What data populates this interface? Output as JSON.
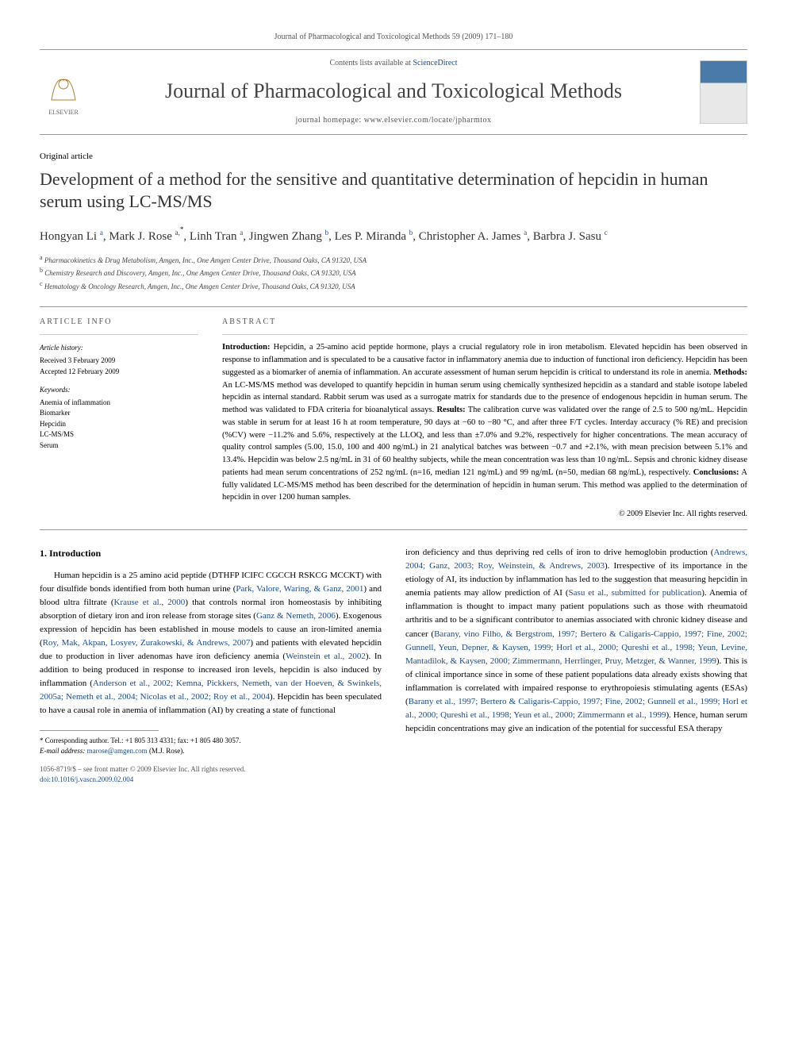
{
  "top_citation": "Journal of Pharmacological and Toxicological Methods 59 (2009) 171–180",
  "header": {
    "contents_prefix": "Contents lists available at ",
    "contents_link": "ScienceDirect",
    "journal_title": "Journal of Pharmacological and Toxicological Methods",
    "homepage_prefix": "journal homepage: ",
    "homepage_url": "www.elsevier.com/locate/jpharmtox",
    "publisher": "ELSEVIER"
  },
  "article_type": "Original article",
  "title": "Development of a method for the sensitive and quantitative determination of hepcidin in human serum using LC-MS/MS",
  "authors_html_parts": [
    {
      "name": "Hongyan Li",
      "sup": "a"
    },
    {
      "name": "Mark J. Rose",
      "sup": "a,*"
    },
    {
      "name": "Linh Tran",
      "sup": "a"
    },
    {
      "name": "Jingwen Zhang",
      "sup": "b"
    },
    {
      "name": "Les P. Miranda",
      "sup": "b"
    },
    {
      "name": "Christopher A. James",
      "sup": "a"
    },
    {
      "name": "Barbra J. Sasu",
      "sup": "c"
    }
  ],
  "affiliations": [
    {
      "sup": "a",
      "text": "Pharmacokinetics & Drug Metabolism, Amgen, Inc., One Amgen Center Drive, Thousand Oaks, CA 91320, USA"
    },
    {
      "sup": "b",
      "text": "Chemistry Research and Discovery, Amgen, Inc., One Amgen Center Drive, Thousand Oaks, CA 91320, USA"
    },
    {
      "sup": "c",
      "text": "Hematology & Oncology Research, Amgen, Inc., One Amgen Center Drive, Thousand Oaks, CA 91320, USA"
    }
  ],
  "info": {
    "label_left": "ARTICLE INFO",
    "label_right": "ABSTRACT",
    "history_label": "Article history:",
    "received": "Received 3 February 2009",
    "accepted": "Accepted 12 February 2009",
    "keywords_label": "Keywords:",
    "keywords": [
      "Anemia of inflammation",
      "Biomarker",
      "Hepcidin",
      "LC-MS/MS",
      "Serum"
    ]
  },
  "abstract": {
    "intro_label": "Introduction:",
    "intro": " Hepcidin, a 25-amino acid peptide hormone, plays a crucial regulatory role in iron metabolism. Elevated hepcidin has been observed in response to inflammation and is speculated to be a causative factor in inflammatory anemia due to induction of functional iron deficiency. Hepcidin has been suggested as a biomarker of anemia of inflammation. An accurate assessment of human serum hepcidin is critical to understand its role in anemia. ",
    "methods_label": "Methods:",
    "methods": " An LC-MS/MS method was developed to quantify hepcidin in human serum using chemically synthesized hepcidin as a standard and stable isotope labeled hepcidin as internal standard. Rabbit serum was used as a surrogate matrix for standards due to the presence of endogenous hepcidin in human serum. The method was validated to FDA criteria for bioanalytical assays. ",
    "results_label": "Results:",
    "results": " The calibration curve was validated over the range of 2.5 to 500 ng/mL. Hepcidin was stable in serum for at least 16 h at room temperature, 90 days at −60 to −80 °C, and after three F/T cycles. Interday accuracy (% RE) and precision (%CV) were −11.2% and 5.6%, respectively at the LLOQ, and less than ±7.0% and 9.2%, respectively for higher concentrations. The mean accuracy of quality control samples (5.00, 15.0, 100 and 400 ng/mL) in 21 analytical batches was between −0.7 and +2.1%, with mean precision between 5.1% and 13.4%. Hepcidin was below 2.5 ng/mL in 31 of 60 healthy subjects, while the mean concentration was less than 10 ng/mL. Sepsis and chronic kidney disease patients had mean serum concentrations of 252 ng/mL (n=16, median 121 ng/mL) and 99 ng/mL (n=50, median 68 ng/mL), respectively. ",
    "conclusions_label": "Conclusions:",
    "conclusions": " A fully validated LC-MS/MS method has been described for the determination of hepcidin in human serum. This method was applied to the determination of hepcidin in over 1200 human samples.",
    "copyright": "© 2009 Elsevier Inc. All rights reserved."
  },
  "section1_heading": "1. Introduction",
  "col_left_para": "Human hepcidin is a 25 amino acid peptide (DTHFP ICIFC CGCCH RSKCG MCCKT) with four disulfide bonds identified from both human urine (Park, Valore, Waring, & Ganz, 2001) and blood ultra filtrate (Krause et al., 2000) that controls normal iron homeostasis by inhibiting absorption of dietary iron and iron release from storage sites (Ganz & Nemeth, 2006). Exogenous expression of hepcidin has been established in mouse models to cause an iron-limited anemia (Roy, Mak, Akpan, Losyev, Zurakowski, & Andrews, 2007) and patients with elevated hepcidin due to production in liver adenomas have iron deficiency anemia (Weinstein et al., 2002). In addition to being produced in response to increased iron levels, hepcidin is also induced by inflammation (Anderson et al., 2002; Kemna, Pickkers, Nemeth, van der Hoeven, & Swinkels, 2005a; Nemeth et al., 2004; Nicolas et al., 2002; Roy et al., 2004). Hepcidin has been speculated to have a causal role in anemia of inflammation (AI) by creating a state of functional",
  "col_right_para": "iron deficiency and thus depriving red cells of iron to drive hemoglobin production (Andrews, 2004; Ganz, 2003; Roy, Weinstein, & Andrews, 2003). Irrespective of its importance in the etiology of AI, its induction by inflammation has led to the suggestion that measuring hepcidin in anemia patients may allow prediction of AI (Sasu et al., submitted for publication). Anemia of inflammation is thought to impact many patient populations such as those with rheumatoid arthritis and to be a significant contributor to anemias associated with chronic kidney disease and cancer (Barany, vino Filho, & Bergstrom, 1997; Bertero & Caligaris-Cappio, 1997; Fine, 2002; Gunnell, Yeun, Depner, & Kaysen, 1999; Horl et al., 2000; Qureshi et al., 1998; Yeun, Levine, Mantadilok, & Kaysen, 2000; Zimmermann, Herrlinger, Pruy, Metzger, & Wanner, 1999). This is of clinical importance since in some of these patient populations data already exists showing that inflammation is correlated with impaired response to erythropoiesis stimulating agents (ESAs) (Barany et al., 1997; Bertero & Caligaris-Cappio, 1997; Fine, 2002; Gunnell et al., 1999; Horl et al., 2000; Qureshi et al., 1998; Yeun et al., 2000; Zimmermann et al., 1999). Hence, human serum hepcidin concentrations may give an indication of the potential for successful ESA therapy",
  "footnotes": {
    "corresponding": "* Corresponding author. Tel.: +1 805 313 4331; fax: +1 805 480 3057.",
    "email_label": "E-mail address: ",
    "email": "marose@amgen.com",
    "email_suffix": " (M.J. Rose)."
  },
  "bottom": {
    "left_line1": "1056-8719/$ – see front matter © 2009 Elsevier Inc. All rights reserved.",
    "left_line2": "doi:10.1016/j.vascn.2009.02.004"
  },
  "colors": {
    "link": "#1a4b8c",
    "text": "#000000",
    "muted": "#555555",
    "rule": "#999999"
  }
}
